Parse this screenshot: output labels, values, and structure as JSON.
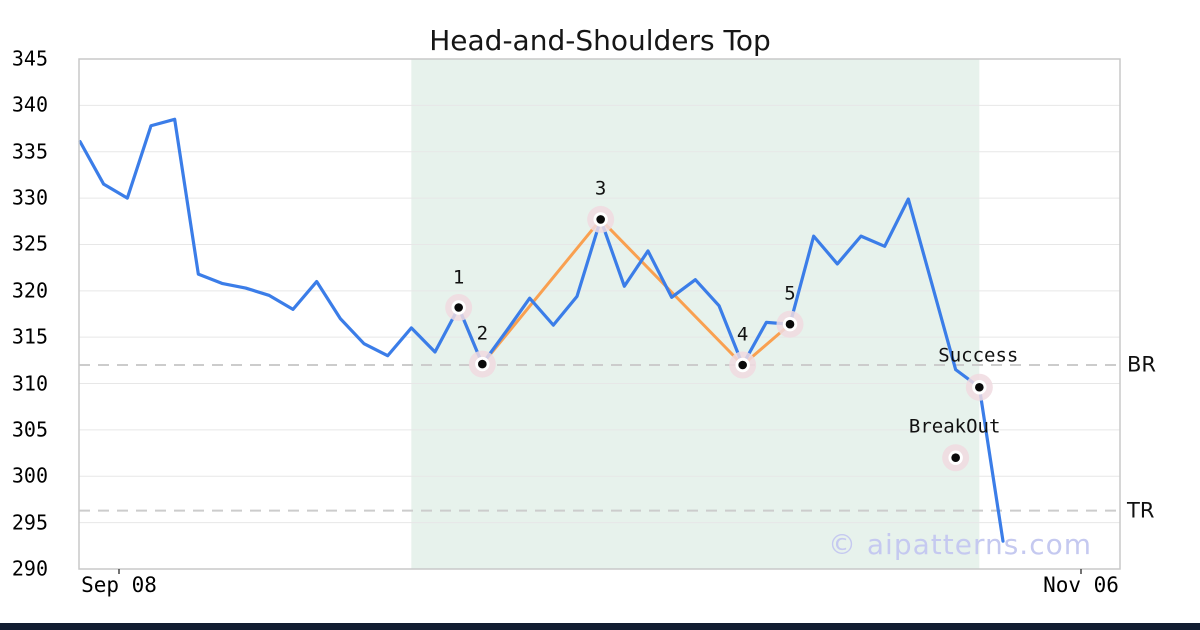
{
  "chart_data": {
    "type": "line",
    "title": "Head-and-Shoulders Top",
    "xlabel": "",
    "ylabel": "",
    "ylim": [
      290,
      345
    ],
    "grid": true,
    "legend": "none",
    "y_ticks": [
      345,
      340,
      335,
      330,
      325,
      320,
      315,
      310,
      305,
      300,
      295,
      290
    ],
    "x_tick_labels": [
      "Sep 08",
      "Nov 06"
    ],
    "price_series": [
      336.1,
      331.5,
      330.0,
      337.8,
      338.5,
      321.8,
      320.8,
      320.3,
      319.5,
      318.0,
      321.0,
      317.0,
      314.3,
      313.0,
      316.0,
      313.4,
      318.2,
      312.1,
      315.6,
      319.2,
      316.3,
      319.4,
      327.7,
      320.5,
      324.3,
      319.3,
      321.2,
      318.4,
      312.0,
      316.6,
      316.4,
      325.9,
      322.9,
      325.9,
      324.8,
      329.9,
      320.7,
      311.5,
      309.6,
      293.0
    ],
    "pattern_points": [
      {
        "label": "1",
        "index": 16,
        "value": 318.2
      },
      {
        "label": "2",
        "index": 17,
        "value": 312.1
      },
      {
        "label": "3",
        "index": 22,
        "value": 327.7
      },
      {
        "label": "4",
        "index": 28,
        "value": 312.0
      },
      {
        "label": "5",
        "index": 30,
        "value": 316.4
      }
    ],
    "annotations": [
      {
        "label": "Success",
        "index": 38,
        "value": 309.6
      },
      {
        "label": "BreakOut",
        "index": 37,
        "value": 302.0
      }
    ],
    "levels": [
      {
        "label": "BR",
        "value": 312.0
      },
      {
        "label": "TR",
        "value": 296.3
      }
    ],
    "shaded_region": {
      "from_index": 14,
      "to_index": 38
    },
    "watermark": "© aipatterns.com",
    "colors": {
      "price_line": "#3b7de8",
      "pattern_line": "#f9a050",
      "marker_halo": "#f0dbe1",
      "marker_ring": "#ffffff",
      "marker_dot": "#0a0a0a",
      "shaded_region": "#e7f2ec",
      "grid_line": "#e7e7e7",
      "frame": "#c9c9c9",
      "level_line": "#cccccc",
      "watermark": "#c5c9f0",
      "footer_bar": "#111c31"
    }
  }
}
